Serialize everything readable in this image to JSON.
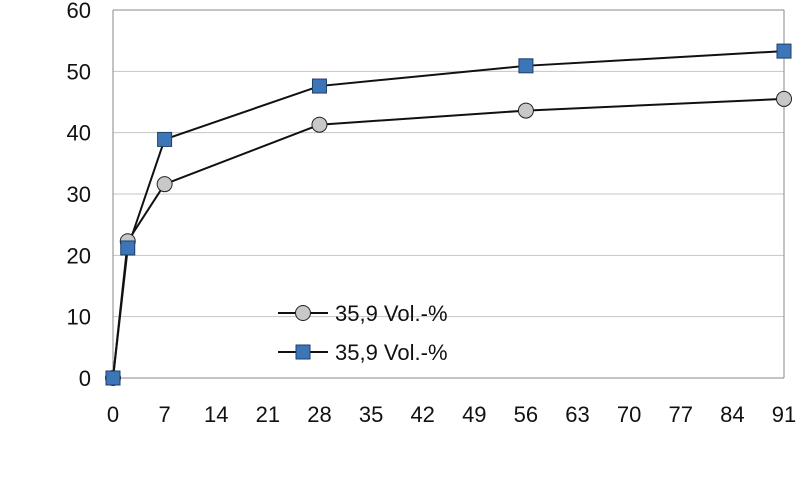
{
  "chart_data": {
    "type": "line",
    "title": "",
    "xlabel": "",
    "ylabel": "",
    "xlim": [
      0,
      91
    ],
    "ylim": [
      0,
      60
    ],
    "x_ticks": [
      "0",
      "7",
      "14",
      "21",
      "28",
      "35",
      "42",
      "49",
      "56",
      "63",
      "70",
      "77",
      "84",
      "91"
    ],
    "y_ticks": [
      "0",
      "10",
      "20",
      "30",
      "40",
      "50",
      "60"
    ],
    "grid": "horizontal",
    "legend_position": "lower-middle",
    "series": [
      {
        "name": "35,9 Vol.-%",
        "marker": "circle",
        "marker_color": "#c8c8c8",
        "line_color": "#111111",
        "x": [
          0,
          2,
          7,
          28,
          56,
          91
        ],
        "y": [
          0,
          22.3,
          31.6,
          41.3,
          43.6,
          45.5
        ]
      },
      {
        "name": "35,9 Vol.-%",
        "marker": "square",
        "marker_color": "#3d76b8",
        "line_color": "#111111",
        "x": [
          0,
          2,
          7,
          28,
          56,
          91
        ],
        "y": [
          0,
          21.2,
          38.9,
          47.6,
          50.9,
          53.3
        ]
      }
    ]
  }
}
